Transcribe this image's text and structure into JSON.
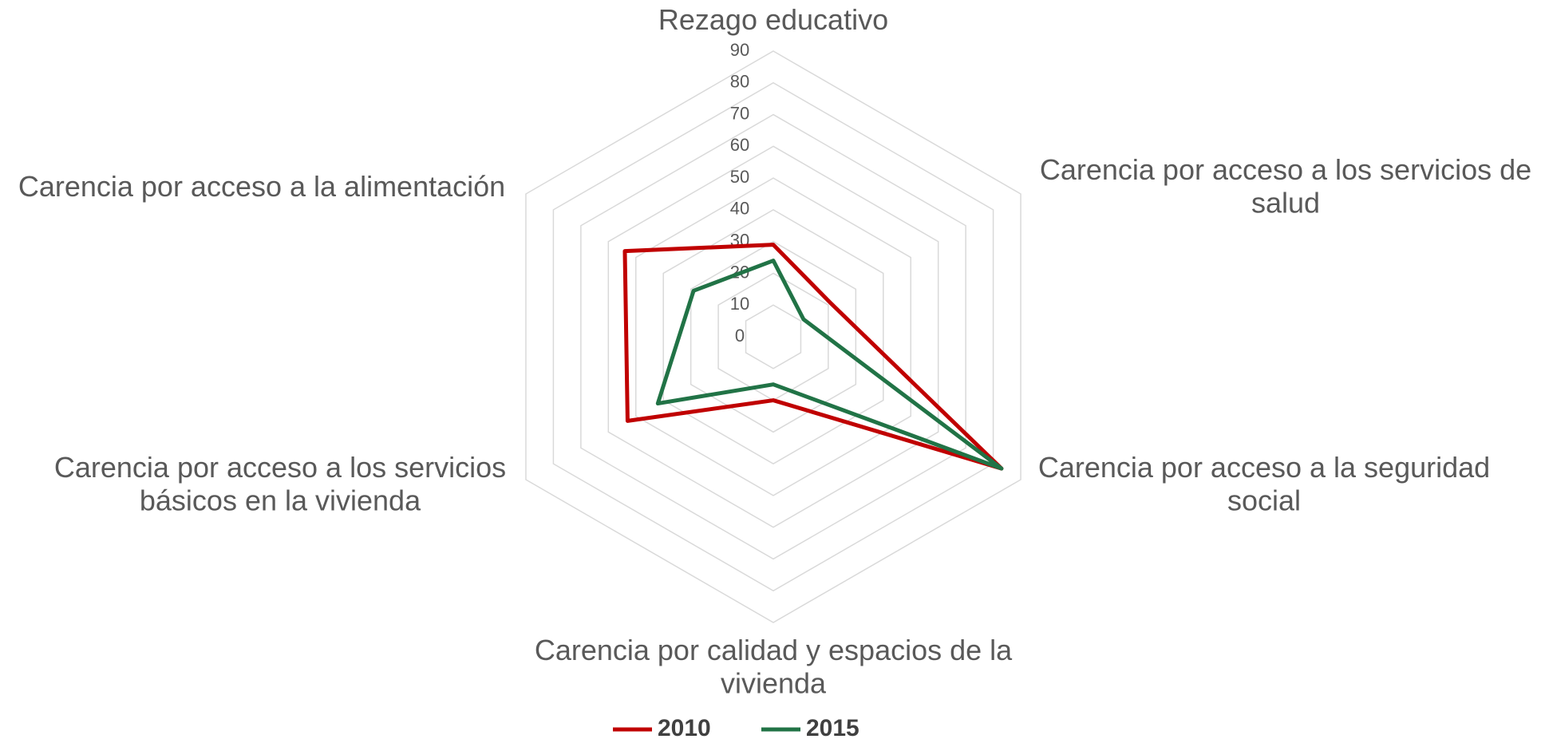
{
  "chart_data": {
    "type": "radar",
    "categories": [
      "Rezago educativo",
      "Carencia por acceso a los servicios de\nsalud",
      "Carencia por acceso a la seguridad\nsocial",
      "Carencia por calidad y espacios de la\nvivienda",
      "Carencia por acceso a los servicios\nbásicos en la vivienda",
      "Carencia por acceso a la alimentación"
    ],
    "series": [
      {
        "name": "2010",
        "color": "#c00000",
        "values": [
          29,
          21,
          83,
          20,
          53,
          54
        ]
      },
      {
        "name": "2015",
        "color": "#217346",
        "values": [
          24,
          11,
          83,
          15,
          42,
          29
        ]
      }
    ],
    "ylim": [
      0,
      90
    ],
    "yticks": [
      0,
      10,
      20,
      30,
      40,
      50,
      60,
      70,
      80,
      90
    ],
    "grid": true,
    "legend": "bottom"
  }
}
